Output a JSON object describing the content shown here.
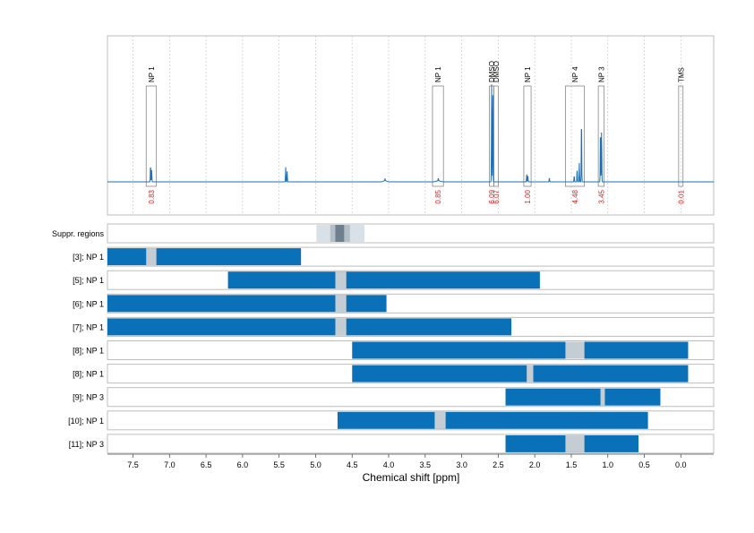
{
  "chart_data": {
    "type": "line",
    "x_axis": {
      "label": "Chemical shift [ppm]",
      "range": [
        7.85,
        -0.45
      ],
      "ticks": [
        "7.5",
        "7.0",
        "6.5",
        "6.0",
        "5.5",
        "5.0",
        "4.5",
        "4.0",
        "3.5",
        "3.0",
        "2.5",
        "2.0",
        "1.5",
        "1.0",
        "0.5",
        "0.0"
      ],
      "reversed": true
    },
    "spectrum": {
      "color": "#1f6fb4",
      "baseline": 0,
      "y_range": [
        -0.15,
        1.45
      ],
      "peaks": [
        {
          "x": 7.26,
          "height": 0.17
        },
        {
          "x": 7.245,
          "height": 0.12
        },
        {
          "x": 5.41,
          "height": 0.14
        },
        {
          "x": 5.39,
          "height": 0.1
        },
        {
          "x": 4.05,
          "height": 0.02
        },
        {
          "x": 3.32,
          "height": 0.025
        },
        {
          "x": 2.59,
          "height": 0.93
        },
        {
          "x": 2.575,
          "height": 0.88
        },
        {
          "x": 2.11,
          "height": 0.07
        },
        {
          "x": 2.095,
          "height": 0.06
        },
        {
          "x": 1.8,
          "height": 0.04
        },
        {
          "x": 1.46,
          "height": 0.06
        },
        {
          "x": 1.42,
          "height": 0.13
        },
        {
          "x": 1.39,
          "height": 0.18
        },
        {
          "x": 1.36,
          "height": 0.64
        },
        {
          "x": 1.1,
          "height": 0.54
        },
        {
          "x": 1.085,
          "height": 0.5
        }
      ],
      "grid_x": [
        7.5,
        7.0,
        6.5,
        6.0,
        5.5,
        5.0,
        4.5,
        4.0,
        3.5,
        3.0,
        2.5,
        2.0,
        1.5,
        1.0,
        0.5,
        0.0
      ],
      "integration_boxes": [
        {
          "label": "NP 1",
          "x_from": 7.32,
          "x_to": 7.18,
          "value": "0.83"
        },
        {
          "label": "NP 1",
          "x_from": 3.4,
          "x_to": 3.25,
          "value": "0.85"
        },
        {
          "label": "DMSO",
          "x_from": 2.62,
          "x_to": 2.56,
          "value": "6.09"
        },
        {
          "label": "DMSO",
          "x_from": 2.56,
          "x_to": 2.5,
          "value": "6.07"
        },
        {
          "label": "NP 1",
          "x_from": 2.15,
          "x_to": 2.05,
          "value": "1.00"
        },
        {
          "label": "NP 4",
          "x_from": 1.58,
          "x_to": 1.32,
          "value": "4.48"
        },
        {
          "label": "NP 3",
          "x_from": 1.13,
          "x_to": 1.05,
          "value": "3.45"
        },
        {
          "label": "TMS",
          "x_from": 0.03,
          "x_to": -0.03,
          "value": "0.01"
        }
      ]
    },
    "tracks": [
      {
        "label": "Suppr. regions",
        "bars": [],
        "suppression": [
          {
            "from": 4.99,
            "to": 4.33,
            "shade": "light"
          },
          {
            "from": 4.8,
            "to": 4.53,
            "shade": "mid"
          },
          {
            "from": 4.73,
            "to": 4.61,
            "shade": "dark"
          }
        ]
      },
      {
        "label": "[3]; NP 1",
        "bars": [
          {
            "from": 7.85,
            "to": 5.2
          }
        ],
        "gaps": [
          {
            "from": 7.32,
            "to": 7.18
          }
        ]
      },
      {
        "label": "[5]; NP 1",
        "bars": [
          {
            "from": 6.2,
            "to": 1.93
          }
        ],
        "gaps": [
          {
            "from": 4.73,
            "to": 4.58
          }
        ]
      },
      {
        "label": "[6]; NP 1",
        "bars": [
          {
            "from": 7.85,
            "to": 4.03
          }
        ],
        "gaps": [
          {
            "from": 4.73,
            "to": 4.58
          }
        ]
      },
      {
        "label": "[7]; NP 1",
        "bars": [
          {
            "from": 7.85,
            "to": 2.32
          }
        ],
        "gaps": [
          {
            "from": 4.73,
            "to": 4.58
          }
        ]
      },
      {
        "label": "[8]; NP 1",
        "bars": [
          {
            "from": 4.5,
            "to": -0.1
          }
        ],
        "gaps": [
          {
            "from": 1.58,
            "to": 1.32
          }
        ]
      },
      {
        "label": "[8]; NP 1",
        "bars": [
          {
            "from": 4.5,
            "to": -0.1
          }
        ],
        "gaps": [
          {
            "from": 2.11,
            "to": 2.02
          }
        ]
      },
      {
        "label": "[9]; NP 3",
        "bars": [
          {
            "from": 2.4,
            "to": 0.28
          }
        ],
        "gaps": [
          {
            "from": 1.1,
            "to": 1.04
          }
        ]
      },
      {
        "label": "[10]; NP 1",
        "bars": [
          {
            "from": 4.7,
            "to": 0.45
          }
        ],
        "gaps": [
          {
            "from": 3.37,
            "to": 3.22
          }
        ]
      },
      {
        "label": "[11]; NP 3",
        "bars": [
          {
            "from": 2.4,
            "to": 0.58
          }
        ],
        "gaps": [
          {
            "from": 1.58,
            "to": 1.32
          }
        ]
      }
    ],
    "colors": {
      "bar": "#0a71b9",
      "gap": "#c4cdd4",
      "box_edge": "#888888",
      "value_text": "#e02020"
    }
  }
}
